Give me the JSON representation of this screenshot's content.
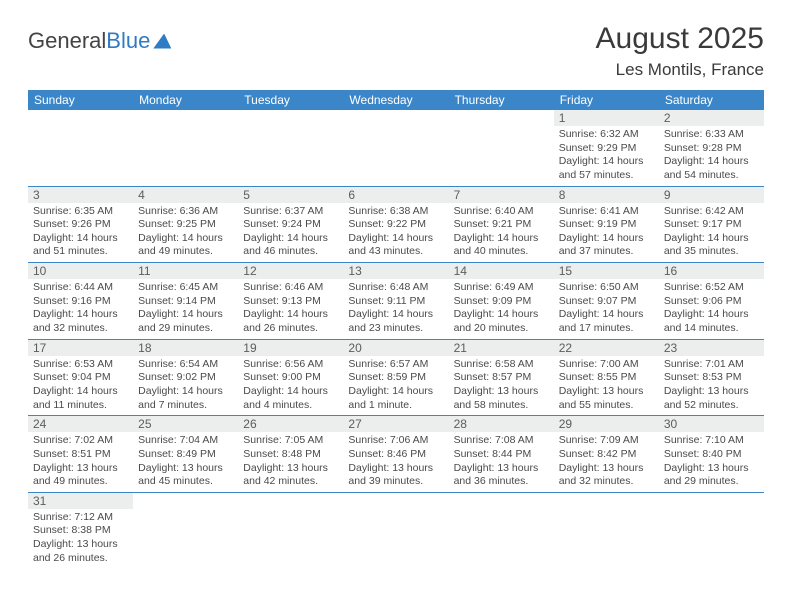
{
  "logo": {
    "part1": "General",
    "part2": "Blue"
  },
  "title": {
    "month": "August 2025",
    "location": "Les Montils, France"
  },
  "calendar": {
    "header_bg": "#3b86c8",
    "header_fg": "#ffffff",
    "daynum_bg": "#eceded",
    "days": [
      "Sunday",
      "Monday",
      "Tuesday",
      "Wednesday",
      "Thursday",
      "Friday",
      "Saturday"
    ],
    "weeks": [
      [
        null,
        null,
        null,
        null,
        null,
        {
          "n": "1",
          "sr": "6:32 AM",
          "ss": "9:29 PM",
          "dl": "14 hours and 57 minutes."
        },
        {
          "n": "2",
          "sr": "6:33 AM",
          "ss": "9:28 PM",
          "dl": "14 hours and 54 minutes."
        }
      ],
      [
        {
          "n": "3",
          "sr": "6:35 AM",
          "ss": "9:26 PM",
          "dl": "14 hours and 51 minutes."
        },
        {
          "n": "4",
          "sr": "6:36 AM",
          "ss": "9:25 PM",
          "dl": "14 hours and 49 minutes."
        },
        {
          "n": "5",
          "sr": "6:37 AM",
          "ss": "9:24 PM",
          "dl": "14 hours and 46 minutes."
        },
        {
          "n": "6",
          "sr": "6:38 AM",
          "ss": "9:22 PM",
          "dl": "14 hours and 43 minutes."
        },
        {
          "n": "7",
          "sr": "6:40 AM",
          "ss": "9:21 PM",
          "dl": "14 hours and 40 minutes."
        },
        {
          "n": "8",
          "sr": "6:41 AM",
          "ss": "9:19 PM",
          "dl": "14 hours and 37 minutes."
        },
        {
          "n": "9",
          "sr": "6:42 AM",
          "ss": "9:17 PM",
          "dl": "14 hours and 35 minutes."
        }
      ],
      [
        {
          "n": "10",
          "sr": "6:44 AM",
          "ss": "9:16 PM",
          "dl": "14 hours and 32 minutes."
        },
        {
          "n": "11",
          "sr": "6:45 AM",
          "ss": "9:14 PM",
          "dl": "14 hours and 29 minutes."
        },
        {
          "n": "12",
          "sr": "6:46 AM",
          "ss": "9:13 PM",
          "dl": "14 hours and 26 minutes."
        },
        {
          "n": "13",
          "sr": "6:48 AM",
          "ss": "9:11 PM",
          "dl": "14 hours and 23 minutes."
        },
        {
          "n": "14",
          "sr": "6:49 AM",
          "ss": "9:09 PM",
          "dl": "14 hours and 20 minutes."
        },
        {
          "n": "15",
          "sr": "6:50 AM",
          "ss": "9:07 PM",
          "dl": "14 hours and 17 minutes."
        },
        {
          "n": "16",
          "sr": "6:52 AM",
          "ss": "9:06 PM",
          "dl": "14 hours and 14 minutes."
        }
      ],
      [
        {
          "n": "17",
          "sr": "6:53 AM",
          "ss": "9:04 PM",
          "dl": "14 hours and 11 minutes."
        },
        {
          "n": "18",
          "sr": "6:54 AM",
          "ss": "9:02 PM",
          "dl": "14 hours and 7 minutes."
        },
        {
          "n": "19",
          "sr": "6:56 AM",
          "ss": "9:00 PM",
          "dl": "14 hours and 4 minutes."
        },
        {
          "n": "20",
          "sr": "6:57 AM",
          "ss": "8:59 PM",
          "dl": "14 hours and 1 minute."
        },
        {
          "n": "21",
          "sr": "6:58 AM",
          "ss": "8:57 PM",
          "dl": "13 hours and 58 minutes."
        },
        {
          "n": "22",
          "sr": "7:00 AM",
          "ss": "8:55 PM",
          "dl": "13 hours and 55 minutes."
        },
        {
          "n": "23",
          "sr": "7:01 AM",
          "ss": "8:53 PM",
          "dl": "13 hours and 52 minutes."
        }
      ],
      [
        {
          "n": "24",
          "sr": "7:02 AM",
          "ss": "8:51 PM",
          "dl": "13 hours and 49 minutes."
        },
        {
          "n": "25",
          "sr": "7:04 AM",
          "ss": "8:49 PM",
          "dl": "13 hours and 45 minutes."
        },
        {
          "n": "26",
          "sr": "7:05 AM",
          "ss": "8:48 PM",
          "dl": "13 hours and 42 minutes."
        },
        {
          "n": "27",
          "sr": "7:06 AM",
          "ss": "8:46 PM",
          "dl": "13 hours and 39 minutes."
        },
        {
          "n": "28",
          "sr": "7:08 AM",
          "ss": "8:44 PM",
          "dl": "13 hours and 36 minutes."
        },
        {
          "n": "29",
          "sr": "7:09 AM",
          "ss": "8:42 PM",
          "dl": "13 hours and 32 minutes."
        },
        {
          "n": "30",
          "sr": "7:10 AM",
          "ss": "8:40 PM",
          "dl": "13 hours and 29 minutes."
        }
      ],
      [
        {
          "n": "31",
          "sr": "7:12 AM",
          "ss": "8:38 PM",
          "dl": "13 hours and 26 minutes."
        },
        null,
        null,
        null,
        null,
        null,
        null
      ]
    ],
    "labels": {
      "sunrise": "Sunrise: ",
      "sunset": "Sunset: ",
      "daylight": "Daylight: "
    }
  }
}
